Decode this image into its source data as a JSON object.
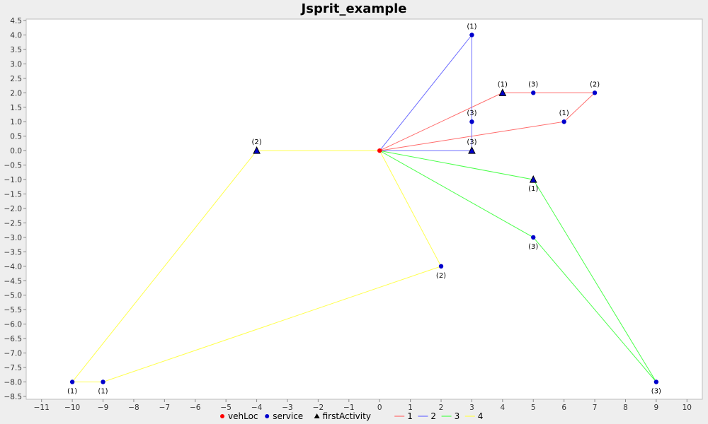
{
  "chart_data": {
    "type": "scatter",
    "title": "Jsprit_example",
    "xlabel": "",
    "ylabel": "",
    "xlim": [
      -11.5,
      10.5
    ],
    "ylim": [
      -8.6,
      4.55
    ],
    "x_ticks": [
      -11,
      -10,
      -9,
      -8,
      -7,
      -6,
      -5,
      -4,
      -3,
      -2,
      -1,
      0,
      1,
      2,
      3,
      4,
      5,
      6,
      7,
      8,
      9,
      10
    ],
    "y_ticks": [
      4.5,
      4.0,
      3.5,
      3.0,
      2.5,
      2.0,
      1.5,
      1.0,
      0.5,
      0.0,
      -0.5,
      -1.0,
      -1.5,
      -2.0,
      -2.5,
      -3.0,
      -3.5,
      -4.0,
      -4.5,
      -5.0,
      -5.5,
      -6.0,
      -6.5,
      -7.0,
      -7.5,
      -8.0,
      -8.5
    ],
    "grid": false,
    "legend_position": "bottom",
    "legend": [
      {
        "label": "vehLoc",
        "marker": "circle",
        "color": "#ff0000"
      },
      {
        "label": "service",
        "marker": "circle",
        "color": "#0000cc"
      },
      {
        "label": "firstActivity",
        "marker": "triangle",
        "color": "#000000"
      },
      {
        "label": "1",
        "marker": "line",
        "color": "#ff6b6b"
      },
      {
        "label": "2",
        "marker": "line",
        "color": "#6b6bff"
      },
      {
        "label": "3",
        "marker": "line",
        "color": "#4cff4c"
      },
      {
        "label": "4",
        "marker": "line",
        "color": "#ffff4c"
      }
    ],
    "vehicle_location": {
      "x": 0,
      "y": 0
    },
    "services": [
      {
        "x": 3,
        "y": 4,
        "label": "(1)",
        "label_pos": "above"
      },
      {
        "x": 5,
        "y": 2,
        "label": "(3)",
        "label_pos": "above"
      },
      {
        "x": 7,
        "y": 2,
        "label": "(2)",
        "label_pos": "above"
      },
      {
        "x": 6,
        "y": 1,
        "label": "(1)",
        "label_pos": "above"
      },
      {
        "x": 3,
        "y": 1,
        "label": "(3)",
        "label_pos": "above"
      },
      {
        "x": 5,
        "y": -3,
        "label": "(3)",
        "label_pos": "below"
      },
      {
        "x": 2,
        "y": -4,
        "label": "(2)",
        "label_pos": "below"
      },
      {
        "x": -10,
        "y": -8,
        "label": "(1)",
        "label_pos": "below"
      },
      {
        "x": -9,
        "y": -8,
        "label": "(1)",
        "label_pos": "below"
      },
      {
        "x": 9,
        "y": -8,
        "label": "(3)",
        "label_pos": "below"
      }
    ],
    "first_activities": [
      {
        "x": 4,
        "y": 2,
        "label": "(1)",
        "label_pos": "above"
      },
      {
        "x": 3,
        "y": 0,
        "label": "(3)",
        "label_pos": "above"
      },
      {
        "x": -4,
        "y": 0,
        "label": "(2)",
        "label_pos": "above"
      },
      {
        "x": 5,
        "y": -1,
        "label": "(1)",
        "label_pos": "below"
      }
    ],
    "series": [
      {
        "name": "1",
        "color": "#ff6b6b",
        "points": [
          [
            0,
            0
          ],
          [
            4,
            2
          ],
          [
            5,
            2
          ],
          [
            7,
            2
          ],
          [
            6,
            1
          ],
          [
            0,
            0
          ]
        ]
      },
      {
        "name": "2",
        "color": "#6b6bff",
        "points": [
          [
            0,
            0
          ],
          [
            3,
            0
          ],
          [
            3,
            1
          ],
          [
            3,
            4
          ],
          [
            0,
            0
          ]
        ]
      },
      {
        "name": "3",
        "color": "#4cff4c",
        "points": [
          [
            0,
            0
          ],
          [
            5,
            -1
          ],
          [
            9,
            -8
          ],
          [
            5,
            -3
          ],
          [
            0,
            0
          ]
        ]
      },
      {
        "name": "4",
        "color": "#ffff4c",
        "points": [
          [
            0,
            0
          ],
          [
            -4,
            0
          ],
          [
            -10,
            -8
          ],
          [
            -9,
            -8
          ],
          [
            2,
            -4
          ],
          [
            0,
            0
          ]
        ]
      }
    ]
  }
}
